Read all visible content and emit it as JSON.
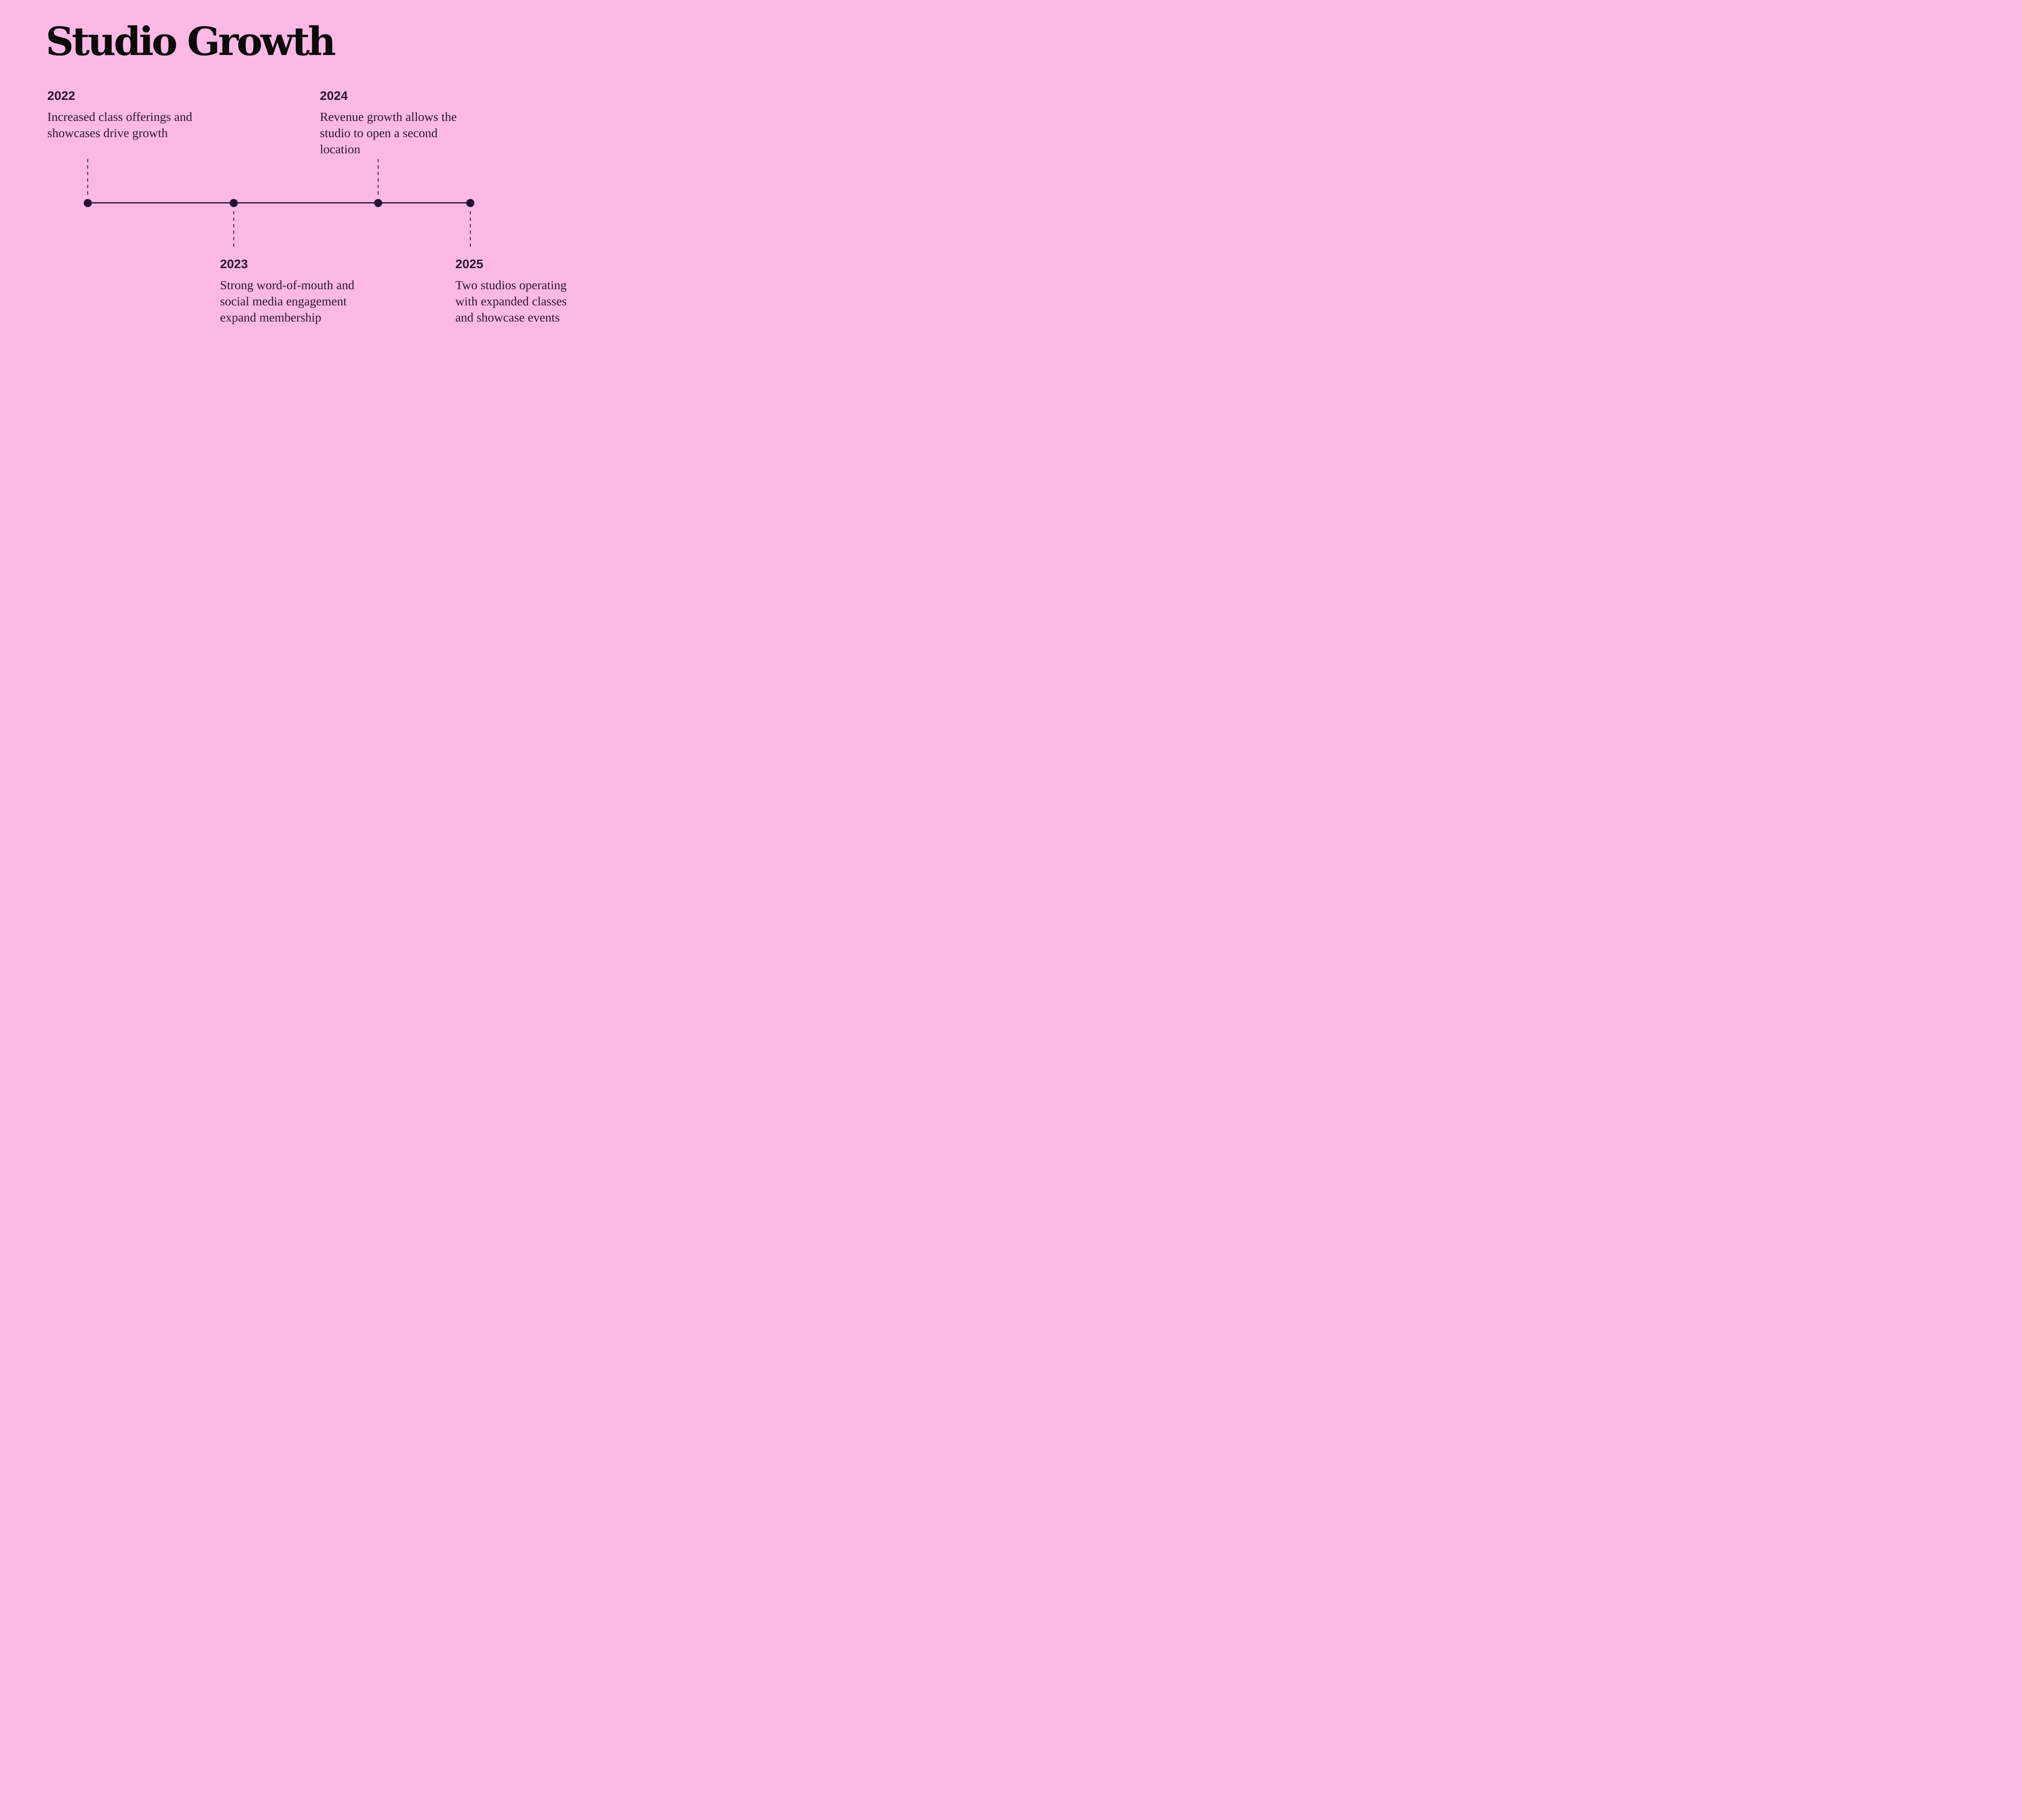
{
  "slide": {
    "title": "Studio Growth",
    "colors": {
      "background": "#fcb9e5",
      "title": "#0c0b0c",
      "text": "#2a1438",
      "timeline": "#251134"
    },
    "timeline": {
      "events": [
        {
          "year": "2022",
          "placement": "above",
          "lines": [
            "Increased class offerings and",
            "showcases drive growth"
          ]
        },
        {
          "year": "2023",
          "placement": "below",
          "lines": [
            "Strong word-of-mouth and",
            "social media engagement",
            "expand membership"
          ]
        },
        {
          "year": "2024",
          "placement": "above",
          "lines": [
            "Revenue growth allows the",
            "studio to open a second",
            "location"
          ]
        },
        {
          "year": "2025",
          "placement": "below",
          "lines": [
            "Two studios operating",
            "with expanded classes",
            "and showcase events"
          ]
        }
      ]
    }
  }
}
